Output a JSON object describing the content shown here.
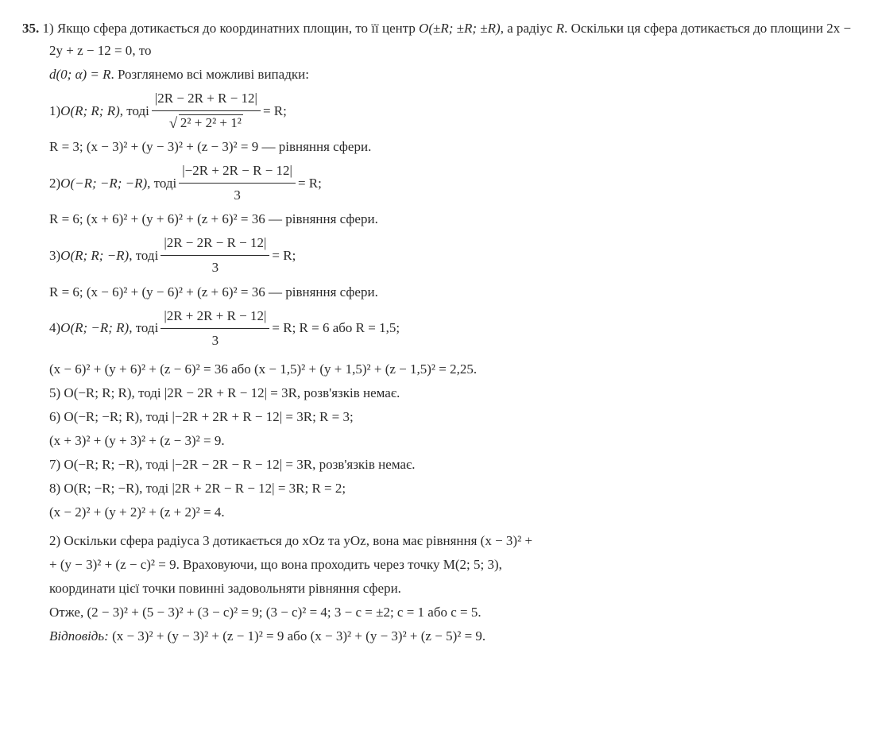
{
  "problem_num": "35.",
  "intro": {
    "part": "1)",
    "l1a": "Якщо сфера дотикається до координатних площин, то її центр ",
    "center": "O(±R; ±R; ±R)",
    "l1b": ", а радіус ",
    "rad": "R",
    "l1c": ". Оскільки ця сфера дотикається до площини ",
    "plane": "2x − 2y + z − 12 = 0",
    "l1d": ", то",
    "l2a": "d(0; α) = R",
    "l2b": ". Розглянемо всі можливі випадки:"
  },
  "c1": {
    "label": "1) ",
    "center": "O(R; R; R)",
    "then": ", тоді ",
    "num": "|2R − 2R + R − 12|",
    "den_inner": "2² + 2² + 1²",
    "eq": " = R;",
    "res": "R = 3; (x − 3)² + (y − 3)² + (z − 3)² = 9 — рівняння сфери."
  },
  "c2": {
    "label": "2) ",
    "center": "O(−R; −R; −R)",
    "then": ", тоді ",
    "num": "|−2R + 2R − R − 12|",
    "den": "3",
    "eq": " = R;",
    "res": "R = 6; (x + 6)² + (y + 6)² + (z + 6)² = 36 — рівняння сфери."
  },
  "c3": {
    "label": "3) ",
    "center": "O(R; R; −R)",
    "then": ", тоді ",
    "num": "|2R − 2R − R − 12|",
    "den": "3",
    "eq": " = R;",
    "res": "R = 6; (x − 6)² + (y − 6)² + (z + 6)² = 36 — рівняння сфери."
  },
  "c4": {
    "label": "4) ",
    "center": "O(R; −R; R)",
    "then": ", тоді ",
    "num": "|2R + 2R + R − 12|",
    "den": "3",
    "eq": " = R;  R = 6 або R = 1,5;",
    "res": "(x − 6)² + (y + 6)² + (z − 6)² = 36 або (x − 1,5)² + (y + 1,5)² + (z − 1,5)² = 2,25."
  },
  "c5": {
    "line": "5) O(−R; R; R), тоді |2R − 2R + R − 12| = 3R, розв'язків немає."
  },
  "c6": {
    "line": "6) O(−R; −R; R), тоді |−2R + 2R + R − 12| = 3R; R = 3;",
    "res": "(x + 3)² + (y + 3)² + (z − 3)² = 9."
  },
  "c7": {
    "line": "7) O(−R; R; −R), тоді |−2R − 2R − R − 12| = 3R, розв'язків немає."
  },
  "c8": {
    "line": "8) O(R; −R; −R), тоді |2R + 2R − R − 12| = 3R; R = 2;",
    "res": "(x − 2)² + (y + 2)² + (z + 2)² = 4."
  },
  "part2": {
    "label": "2) ",
    "l1": "Оскільки сфера радіуса 3 дотикається до xOz та yOz, вона має рівняння (x − 3)² +",
    "l2": "+ (y − 3)² + (z − c)² = 9. Враховуючи, що вона проходить через точку M(2; 5; 3),",
    "l3": "координати цієї точки повинні задовольняти рівняння сфери.",
    "l4": "Отже, (2 − 3)² + (5 − 3)² + (3 − c)² = 9; (3 − c)² = 4; 3 − c = ±2; c = 1 або c = 5.",
    "ans_label": "Відповідь: ",
    "ans": "(x − 3)² + (y − 3)² + (z − 1)² = 9 або (x − 3)² + (y − 3)² + (z − 5)² = 9."
  }
}
